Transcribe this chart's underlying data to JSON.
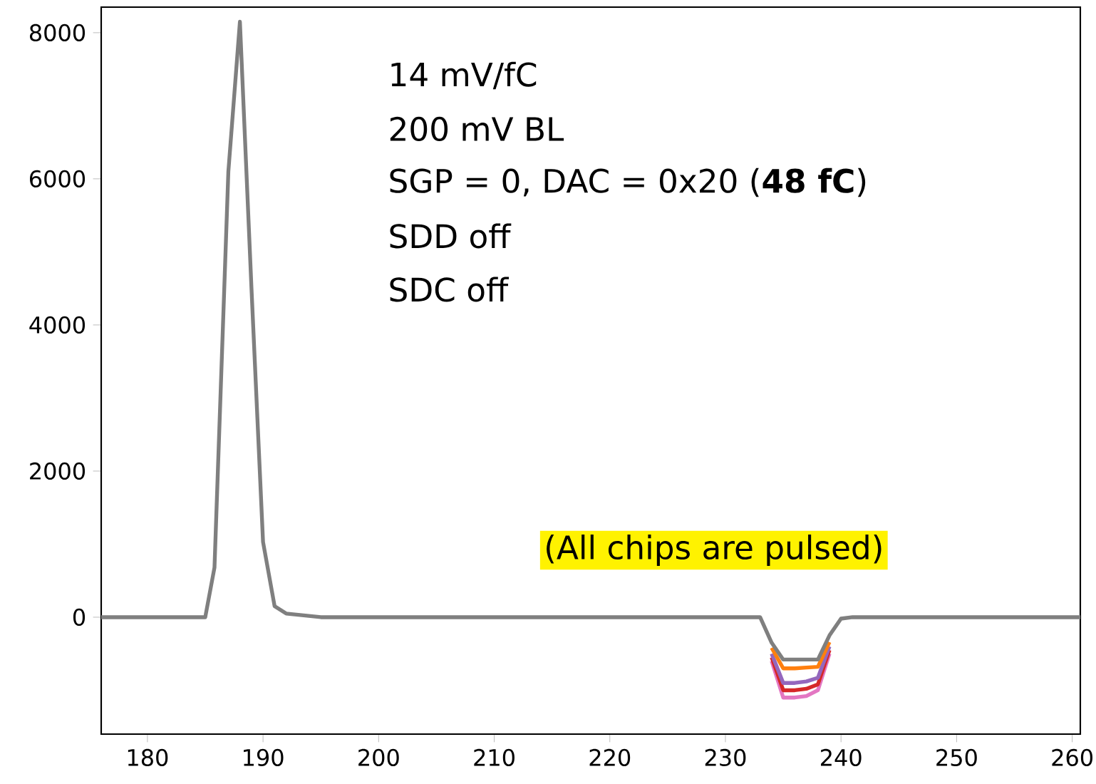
{
  "chart_data": {
    "type": "line",
    "x": [
      176,
      185,
      185.8,
      187,
      188,
      189,
      190,
      191,
      192,
      195,
      233,
      234,
      235,
      236,
      237,
      238,
      239,
      240,
      241,
      260.7
    ],
    "series": [
      {
        "color": "#e377c2",
        "x": [
          234,
          235,
          236,
          237,
          238,
          239
        ],
        "values": [
          -600,
          -1100,
          -1100,
          -1080,
          -1000,
          -500
        ]
      },
      {
        "color": "#d62728",
        "x": [
          234,
          235,
          236,
          237,
          238,
          239
        ],
        "values": [
          -550,
          -1000,
          -1000,
          -980,
          -920,
          -450
        ]
      },
      {
        "color": "#9467bd",
        "x": [
          234,
          235,
          236,
          237,
          238,
          239
        ],
        "values": [
          -500,
          -900,
          -900,
          -880,
          -830,
          -400
        ]
      },
      {
        "color": "#ff7f0e",
        "x": [
          234,
          235,
          236,
          237,
          238,
          239
        ],
        "values": [
          -420,
          -700,
          -700,
          -690,
          -680,
          -340
        ]
      },
      {
        "color": "#7f7f7f",
        "values": [
          0,
          0,
          680,
          6100,
          8150,
          4500,
          1030,
          150,
          50,
          0,
          0,
          -350,
          -580,
          -580,
          -580,
          -580,
          -250,
          -20,
          0,
          0
        ]
      }
    ],
    "xlim": [
      176,
      260.7
    ],
    "ylim": [
      -1600,
      8350
    ],
    "xticks": [
      180,
      190,
      200,
      210,
      220,
      230,
      240,
      250,
      260
    ],
    "yticks": [
      0,
      2000,
      4000,
      6000,
      8000
    ],
    "annotations": [
      "14 mV/fC",
      "200 mV BL",
      "SGP = 0, DAC = 0x20 (**48 fC**)",
      "SDD off",
      "SDC off",
      "(All chips are pulsed)"
    ]
  }
}
